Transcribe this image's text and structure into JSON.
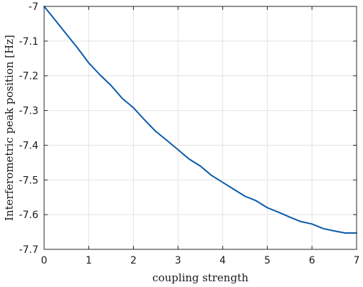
{
  "chart_data": {
    "type": "line",
    "title": "",
    "xlabel": "coupling strength",
    "ylabel": "Interferometric peak position [Hz]",
    "xlim": [
      0,
      7
    ],
    "ylim": [
      -7.7,
      -7.0
    ],
    "grid": true,
    "x_ticks": [
      0,
      1,
      2,
      3,
      4,
      5,
      6,
      7
    ],
    "x_tick_labels": [
      "0",
      "1",
      "2",
      "3",
      "4",
      "5",
      "6",
      "7"
    ],
    "y_ticks": [
      -7.0,
      -7.1,
      -7.2,
      -7.3,
      -7.4,
      -7.5,
      -7.6,
      -7.7
    ],
    "y_tick_labels": [
      "-7",
      "-7.1",
      "-7.2",
      "-7.3",
      "-7.4",
      "-7.5",
      "-7.6",
      "-7.7"
    ],
    "series": [
      {
        "color": "#0b5aa8",
        "x": [
          0,
          0.25,
          0.5,
          0.75,
          1.0,
          1.25,
          1.5,
          1.75,
          2.0,
          2.25,
          2.5,
          2.75,
          3.0,
          3.25,
          3.5,
          3.75,
          4.0,
          4.25,
          4.5,
          4.75,
          5.0,
          5.25,
          5.5,
          5.75,
          6.0,
          6.25,
          6.5,
          6.75,
          7.0
        ],
        "y": [
          -7.0,
          -7.04,
          -7.08,
          -7.12,
          -7.163,
          -7.197,
          -7.228,
          -7.265,
          -7.292,
          -7.327,
          -7.36,
          -7.386,
          -7.413,
          -7.44,
          -7.46,
          -7.487,
          -7.507,
          -7.527,
          -7.547,
          -7.56,
          -7.58,
          -7.593,
          -7.607,
          -7.62,
          -7.627,
          -7.64,
          -7.647,
          -7.653,
          -7.653
        ]
      }
    ]
  }
}
